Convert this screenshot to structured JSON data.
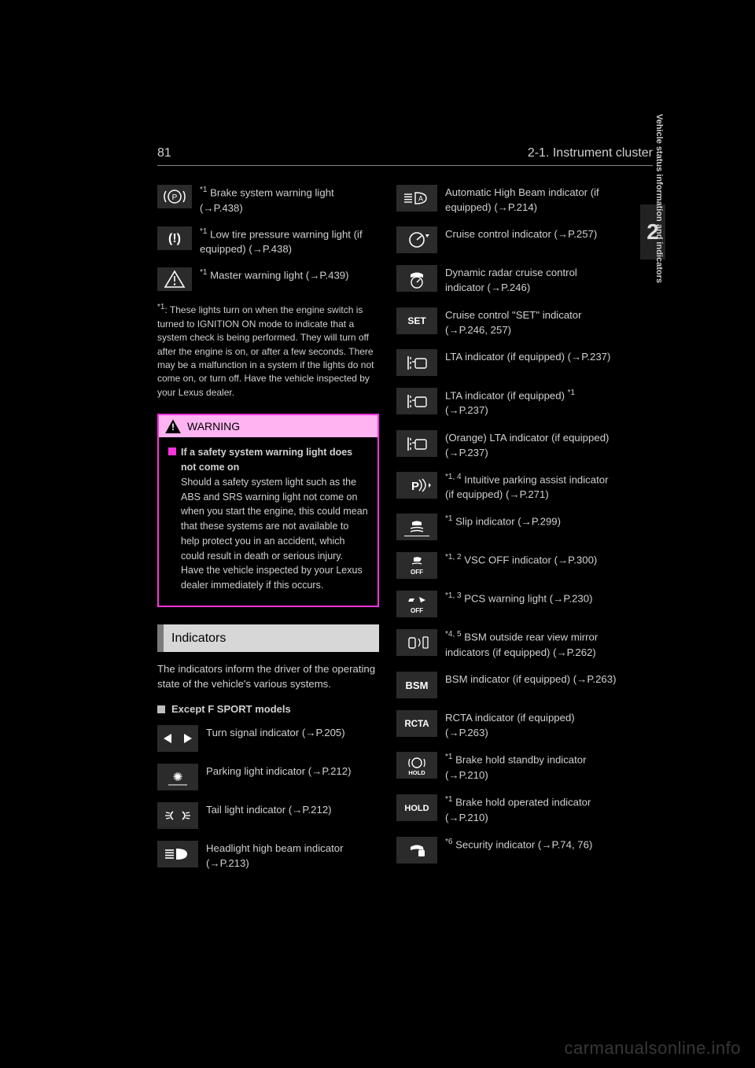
{
  "header": {
    "page_number": "81",
    "section_title": "2-1. Instrument cluster",
    "chapter_number": "2",
    "chapter_side_label": "Vehicle status information and indicators"
  },
  "left_column": {
    "warning_lights": [
      {
        "icon_svg": "brake-p",
        "label": "Brake system warning light",
        "super": "*1",
        "page": "P.438"
      },
      {
        "icon_svg": "tire",
        "label": "Low tire pressure warning light (if equipped)",
        "super": "*1",
        "page": "P.438"
      },
      {
        "icon_svg": "master",
        "label": "Master warning light",
        "super": "*1",
        "page": "P.439"
      }
    ],
    "footnote": "*1: These lights turn on when the engine switch is turned to IGNITION ON mode to indicate that a system check is being performed. They will turn off after the engine is on, or after a few seconds. There may be a malfunction in a system if the lights do not come on, or turn off. Have the vehicle inspected by your Lexus dealer.",
    "warning_box": {
      "title": "WARNING",
      "sub_title": "If a safety system warning light does not come on",
      "body": "Should a safety system light such as the ABS and SRS warning light not come on when you start the engine, this could mean that these systems are not available to help protect you in an accident, which could result in death or serious injury. Have the vehicle inspected by your Lexus dealer immediately if this occurs."
    },
    "indicators_header": "Indicators",
    "indicators_intro": "The indicators inform the driver of the operating state of the vehicle's various systems.",
    "indicators_subhead": "Except F SPORT models",
    "indicator_rows_left": [
      {
        "icon_svg": "turn",
        "label": "Turn signal indicator",
        "page": "P.205"
      },
      {
        "icon_svg": "parking-lights",
        "label": "Parking light indicator",
        "page": "P.212"
      },
      {
        "icon_svg": "tail",
        "label": "Tail light indicator",
        "page": "P.212"
      },
      {
        "icon_svg": "highbeam",
        "label": "Headlight high beam indicator",
        "page": "P.213"
      }
    ]
  },
  "right_column": {
    "indicator_rows": [
      {
        "icon_svg": "ahb",
        "label": "Automatic High Beam indicator (if equipped)",
        "page": "P.214"
      },
      {
        "icon_svg": "cruise",
        "label": "Cruise control indicator",
        "page": "P.257"
      },
      {
        "icon_svg": "radar",
        "label": "Dynamic radar cruise control indicator",
        "page": "P.246"
      },
      {
        "icon_svg": "set",
        "label": "Cruise control \"SET\" indicator",
        "page": "P.246, 257"
      },
      {
        "icon_svg": "lta-white",
        "label": "LTA indicator (if equipped)",
        "page": "P.237"
      },
      {
        "icon_svg": "lta-green",
        "label": "LTA indicator (if equipped)",
        "super": "*1",
        "super_pos": "after_equipped",
        "page": "P.237"
      },
      {
        "icon_svg": "lta-orange",
        "label_prefix": "(Orange)",
        "label": "LTA indicator (if equipped)",
        "page": "P.237"
      },
      {
        "icon_svg": "sonar",
        "label": "Intuitive parking assist indicator (if equipped)",
        "super": "*1, 4",
        "page": "P.271"
      },
      {
        "icon_svg": "slip",
        "label": "Slip indicator",
        "super": "*1",
        "page": "P.299",
        "underline": true
      },
      {
        "icon_svg": "vsc-off",
        "label": "VSC OFF indicator",
        "super": "*1, 2",
        "page": "P.300"
      },
      {
        "icon_svg": "pcs-off",
        "label": "PCS warning light",
        "super": "*1, 3",
        "page": "P.230"
      },
      {
        "icon_svg": "bsm-mirror",
        "label": "BSM outside rear view mirror indicators (if equipped)",
        "super": "*4, 5",
        "page": "P.262"
      },
      {
        "icon_svg": "bsm-text",
        "label": "BSM indicator (if equipped)",
        "page": "P.263"
      },
      {
        "icon_svg": "rcta",
        "label": "RCTA indicator (if equipped)",
        "page": "P.263"
      },
      {
        "icon_svg": "brakehold-standby",
        "label": "Brake hold standby indicator",
        "super": "*1",
        "page": "P.210"
      },
      {
        "icon_svg": "brakehold-op",
        "label": "Brake hold operated indicator",
        "super": "*1",
        "page": "P.210"
      },
      {
        "icon_svg": "security",
        "label": "Security indicator",
        "super": "*6",
        "page": "P.74, 76"
      }
    ]
  },
  "watermark": "carmanualsonline.info"
}
